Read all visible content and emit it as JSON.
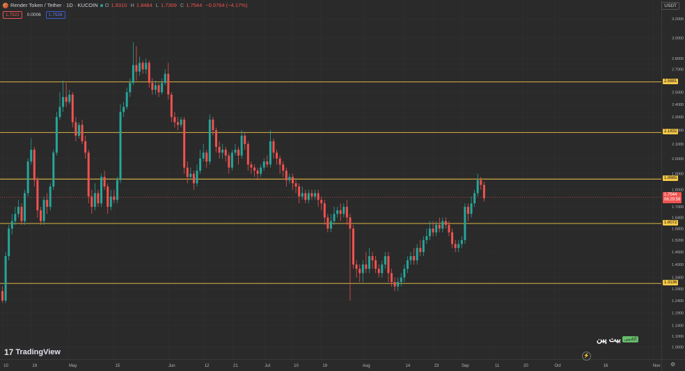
{
  "header": {
    "symbol": "Render Token / Tether · 1D · KUCOIN",
    "o_label": "O",
    "o": "1.8310",
    "h_label": "H",
    "h": "1.8484",
    "l_label": "L",
    "l": "1.7309",
    "c_label": "C",
    "c": "1.7544",
    "change": "−0.0764 (−4.17%)",
    "sell": "1.7522",
    "spread": "0.0006",
    "buy": "1.7528",
    "currency": "USDT"
  },
  "branding": {
    "logo_text": "TradingView",
    "logo_mark": "17",
    "watermark_text": "بیت پین",
    "watermark_badge": "آکادمی",
    "bolt_icon": "⚡"
  },
  "colors": {
    "up": "#26a69a",
    "down": "#ef5350",
    "level": "#f7c948",
    "bg": "#2a2a2a",
    "grid": "#333333"
  },
  "levels": [
    {
      "label": "2.5881",
      "value": 2.5881
    },
    {
      "label": "2.1832",
      "value": 2.1832
    },
    {
      "label": "1.8665",
      "value": 1.8665
    },
    {
      "label": "1.6072",
      "value": 1.6072
    },
    {
      "label": "1.3136",
      "value": 1.3136
    }
  ],
  "last_price": {
    "price": "1.7544",
    "countdown": "06:29:58",
    "value": 1.7544
  },
  "chart_data": {
    "type": "candlestick",
    "scale": "log",
    "ylim": [
      1.03,
      3.3
    ],
    "y_ticks": [
      {
        "label": "3.2000",
        "value": 3.2
      },
      {
        "label": "3.0000",
        "value": 3.0
      },
      {
        "label": "2.8000",
        "value": 2.8
      },
      {
        "label": "2.7000",
        "value": 2.7
      },
      {
        "label": "2.5000",
        "value": 2.5
      },
      {
        "label": "2.4000",
        "value": 2.4
      },
      {
        "label": "2.3000",
        "value": 2.3
      },
      {
        "label": "2.2000",
        "value": 2.2
      },
      {
        "label": "2.1000",
        "value": 2.1
      },
      {
        "label": "2.0000",
        "value": 2.0
      },
      {
        "label": "1.9000",
        "value": 1.9
      },
      {
        "label": "1.8000",
        "value": 1.8
      },
      {
        "label": "1.7000",
        "value": 1.7
      },
      {
        "label": "1.6400",
        "value": 1.64
      },
      {
        "label": "1.5800",
        "value": 1.58
      },
      {
        "label": "1.5200",
        "value": 1.52
      },
      {
        "label": "1.4600",
        "value": 1.46
      },
      {
        "label": "1.4000",
        "value": 1.4
      },
      {
        "label": "1.3400",
        "value": 1.34
      },
      {
        "label": "1.2900",
        "value": 1.29
      },
      {
        "label": "1.2400",
        "value": 1.24
      },
      {
        "label": "1.1900",
        "value": 1.19
      },
      {
        "label": "1.1400",
        "value": 1.14
      },
      {
        "label": "1.1000",
        "value": 1.1
      },
      {
        "label": "1.0600",
        "value": 1.06
      }
    ],
    "x_ticks": [
      {
        "label": "10",
        "day": 0
      },
      {
        "label": "19",
        "day": 9
      },
      {
        "label": "May",
        "day": 21
      },
      {
        "label": "15",
        "day": 35
      },
      {
        "label": "Jun",
        "day": 52
      },
      {
        "label": "12",
        "day": 63
      },
      {
        "label": "21",
        "day": 72
      },
      {
        "label": "Jul",
        "day": 82
      },
      {
        "label": "10",
        "day": 91
      },
      {
        "label": "19",
        "day": 100
      },
      {
        "label": "Aug",
        "day": 113
      },
      {
        "label": "14",
        "day": 126
      },
      {
        "label": "23",
        "day": 135
      },
      {
        "label": "Sep",
        "day": 144
      },
      {
        "label": "11",
        "day": 154
      },
      {
        "label": "20",
        "day": 163
      },
      {
        "label": "Oct",
        "day": 173
      },
      {
        "label": "16",
        "day": 188
      },
      {
        "label": "Nov",
        "day": 204
      }
    ],
    "candles": [
      [
        1.28,
        1.24,
        1.3,
        1.23
      ],
      [
        1.24,
        1.44,
        1.46,
        1.23
      ],
      [
        1.44,
        1.58,
        1.6,
        1.42
      ],
      [
        1.58,
        1.62,
        1.66,
        1.55
      ],
      [
        1.62,
        1.66,
        1.7,
        1.6
      ],
      [
        1.66,
        1.7,
        1.74,
        1.64
      ],
      [
        1.7,
        1.62,
        1.72,
        1.6
      ],
      [
        1.62,
        1.78,
        1.8,
        1.6
      ],
      [
        1.78,
        1.98,
        2.0,
        1.76
      ],
      [
        1.98,
        2.06,
        2.14,
        1.96
      ],
      [
        2.06,
        1.86,
        2.08,
        1.82
      ],
      [
        1.86,
        1.68,
        1.88,
        1.64
      ],
      [
        1.68,
        1.62,
        1.7,
        1.6
      ],
      [
        1.62,
        1.74,
        1.76,
        1.6
      ],
      [
        1.74,
        1.7,
        1.78,
        1.66
      ],
      [
        1.7,
        1.82,
        1.84,
        1.68
      ],
      [
        1.82,
        2.04,
        2.06,
        1.8
      ],
      [
        2.04,
        2.3,
        2.34,
        2.02
      ],
      [
        2.3,
        2.38,
        2.5,
        2.28
      ],
      [
        2.38,
        2.46,
        2.6,
        2.34
      ],
      [
        2.46,
        2.42,
        2.58,
        2.38
      ],
      [
        2.42,
        2.48,
        2.52,
        2.4
      ],
      [
        2.48,
        2.26,
        2.5,
        2.22
      ],
      [
        2.26,
        2.16,
        2.3,
        2.12
      ],
      [
        2.16,
        2.24,
        2.26,
        2.14
      ],
      [
        2.24,
        2.12,
        2.28,
        2.1
      ],
      [
        2.12,
        2.04,
        2.16,
        2.0
      ],
      [
        2.04,
        1.76,
        2.06,
        1.72
      ],
      [
        1.76,
        1.7,
        1.8,
        1.66
      ],
      [
        1.7,
        1.78,
        1.84,
        1.68
      ],
      [
        1.78,
        1.72,
        1.8,
        1.7
      ],
      [
        1.72,
        1.88,
        1.9,
        1.7
      ],
      [
        1.88,
        1.82,
        1.92,
        1.8
      ],
      [
        1.82,
        1.7,
        1.84,
        1.66
      ],
      [
        1.7,
        1.76,
        1.8,
        1.68
      ],
      [
        1.76,
        1.74,
        1.8,
        1.72
      ],
      [
        1.74,
        1.86,
        1.88,
        1.72
      ],
      [
        1.86,
        2.34,
        2.4,
        1.84
      ],
      [
        2.34,
        2.38,
        2.42,
        2.3
      ],
      [
        2.38,
        2.5,
        2.54,
        2.36
      ],
      [
        2.5,
        2.58,
        2.62,
        2.46
      ],
      [
        2.58,
        2.74,
        2.96,
        2.56
      ],
      [
        2.74,
        2.68,
        2.92,
        2.6
      ],
      [
        2.68,
        2.76,
        2.82,
        2.64
      ],
      [
        2.76,
        2.7,
        2.78,
        2.66
      ],
      [
        2.7,
        2.76,
        2.8,
        2.66
      ],
      [
        2.76,
        2.58,
        2.78,
        2.54
      ],
      [
        2.58,
        2.52,
        2.62,
        2.48
      ],
      [
        2.52,
        2.56,
        2.6,
        2.48
      ],
      [
        2.56,
        2.5,
        2.58,
        2.46
      ],
      [
        2.5,
        2.58,
        2.62,
        2.48
      ],
      [
        2.58,
        2.66,
        2.7,
        2.56
      ],
      [
        2.66,
        2.48,
        2.76,
        2.44
      ],
      [
        2.48,
        2.3,
        2.5,
        2.26
      ],
      [
        2.3,
        2.26,
        2.34,
        2.22
      ],
      [
        2.26,
        2.24,
        2.3,
        2.2
      ],
      [
        2.24,
        2.28,
        2.3,
        2.22
      ],
      [
        2.28,
        1.94,
        2.3,
        1.9
      ],
      [
        1.94,
        1.88,
        1.98,
        1.84
      ],
      [
        1.88,
        1.9,
        1.94,
        1.86
      ],
      [
        1.9,
        1.84,
        1.92,
        1.8
      ],
      [
        1.84,
        1.92,
        1.96,
        1.82
      ],
      [
        1.92,
        2.0,
        2.06,
        1.9
      ],
      [
        2.0,
        2.04,
        2.1,
        1.98
      ],
      [
        2.04,
        1.98,
        2.06,
        1.94
      ],
      [
        1.98,
        2.28,
        2.32,
        1.96
      ],
      [
        2.28,
        2.2,
        2.3,
        2.16
      ],
      [
        2.2,
        2.08,
        2.22,
        2.04
      ],
      [
        2.08,
        2.04,
        2.12,
        2.0
      ],
      [
        2.04,
        2.06,
        2.1,
        2.0
      ],
      [
        2.06,
        2.02,
        2.08,
        1.98
      ],
      [
        2.02,
        1.94,
        2.04,
        1.9
      ],
      [
        1.94,
        2.04,
        2.06,
        1.92
      ],
      [
        2.04,
        2.06,
        2.1,
        2.02
      ],
      [
        2.06,
        2.02,
        2.08,
        1.96
      ],
      [
        2.02,
        2.16,
        2.2,
        2.0
      ],
      [
        2.16,
        2.1,
        2.18,
        2.06
      ],
      [
        2.1,
        1.96,
        2.12,
        1.92
      ],
      [
        1.96,
        1.94,
        1.98,
        1.9
      ],
      [
        1.94,
        1.92,
        1.96,
        1.88
      ],
      [
        1.92,
        1.9,
        1.94,
        1.86
      ],
      [
        1.9,
        1.94,
        1.96,
        1.88
      ],
      [
        1.94,
        1.98,
        2.0,
        1.92
      ],
      [
        1.98,
        1.96,
        2.02,
        1.94
      ],
      [
        1.96,
        2.12,
        2.2,
        1.94
      ],
      [
        2.12,
        2.04,
        2.14,
        2.0
      ],
      [
        2.04,
        2.0,
        2.06,
        1.96
      ],
      [
        2.0,
        1.96,
        2.02,
        1.9
      ],
      [
        1.96,
        1.92,
        1.98,
        1.88
      ],
      [
        1.92,
        1.86,
        1.94,
        1.82
      ],
      [
        1.86,
        1.88,
        1.9,
        1.84
      ],
      [
        1.88,
        1.84,
        1.9,
        1.8
      ],
      [
        1.84,
        1.82,
        1.86,
        1.78
      ],
      [
        1.82,
        1.76,
        1.84,
        1.72
      ],
      [
        1.76,
        1.78,
        1.82,
        1.74
      ],
      [
        1.78,
        1.74,
        1.8,
        1.72
      ],
      [
        1.74,
        1.78,
        1.8,
        1.72
      ],
      [
        1.78,
        1.76,
        1.8,
        1.74
      ],
      [
        1.76,
        1.78,
        1.8,
        1.74
      ],
      [
        1.78,
        1.74,
        1.8,
        1.7
      ],
      [
        1.74,
        1.72,
        1.76,
        1.68
      ],
      [
        1.72,
        1.64,
        1.74,
        1.6
      ],
      [
        1.64,
        1.58,
        1.66,
        1.56
      ],
      [
        1.58,
        1.62,
        1.66,
        1.56
      ],
      [
        1.62,
        1.66,
        1.7,
        1.6
      ],
      [
        1.66,
        1.68,
        1.7,
        1.64
      ],
      [
        1.68,
        1.66,
        1.72,
        1.62
      ],
      [
        1.66,
        1.7,
        1.72,
        1.64
      ],
      [
        1.7,
        1.64,
        1.74,
        1.6
      ],
      [
        1.64,
        1.58,
        1.66,
        1.24
      ],
      [
        1.58,
        1.4,
        1.6,
        1.38
      ],
      [
        1.4,
        1.38,
        1.42,
        1.34
      ],
      [
        1.38,
        1.36,
        1.4,
        1.32
      ],
      [
        1.36,
        1.4,
        1.42,
        1.32
      ],
      [
        1.4,
        1.38,
        1.46,
        1.36
      ],
      [
        1.38,
        1.44,
        1.48,
        1.36
      ],
      [
        1.44,
        1.42,
        1.46,
        1.38
      ],
      [
        1.42,
        1.38,
        1.44,
        1.36
      ],
      [
        1.38,
        1.36,
        1.4,
        1.34
      ],
      [
        1.36,
        1.4,
        1.42,
        1.34
      ],
      [
        1.4,
        1.44,
        1.46,
        1.38
      ],
      [
        1.44,
        1.36,
        1.46,
        1.32
      ],
      [
        1.36,
        1.32,
        1.38,
        1.3
      ],
      [
        1.32,
        1.3,
        1.34,
        1.28
      ],
      [
        1.3,
        1.32,
        1.34,
        1.28
      ],
      [
        1.32,
        1.34,
        1.36,
        1.3
      ],
      [
        1.34,
        1.38,
        1.4,
        1.32
      ],
      [
        1.38,
        1.42,
        1.44,
        1.36
      ],
      [
        1.42,
        1.44,
        1.46,
        1.4
      ],
      [
        1.44,
        1.42,
        1.48,
        1.4
      ],
      [
        1.42,
        1.48,
        1.5,
        1.4
      ],
      [
        1.48,
        1.46,
        1.52,
        1.44
      ],
      [
        1.46,
        1.52,
        1.54,
        1.44
      ],
      [
        1.52,
        1.54,
        1.58,
        1.5
      ],
      [
        1.54,
        1.58,
        1.62,
        1.52
      ],
      [
        1.58,
        1.56,
        1.62,
        1.54
      ],
      [
        1.56,
        1.6,
        1.62,
        1.54
      ],
      [
        1.6,
        1.58,
        1.64,
        1.56
      ],
      [
        1.58,
        1.62,
        1.64,
        1.56
      ],
      [
        1.62,
        1.6,
        1.64,
        1.58
      ],
      [
        1.6,
        1.56,
        1.62,
        1.54
      ],
      [
        1.56,
        1.5,
        1.58,
        1.48
      ],
      [
        1.5,
        1.48,
        1.52,
        1.46
      ],
      [
        1.48,
        1.5,
        1.52,
        1.46
      ],
      [
        1.5,
        1.52,
        1.54,
        1.48
      ],
      [
        1.52,
        1.7,
        1.72,
        1.5
      ],
      [
        1.7,
        1.66,
        1.72,
        1.62
      ],
      [
        1.66,
        1.72,
        1.76,
        1.64
      ],
      [
        1.72,
        1.78,
        1.8,
        1.7
      ],
      [
        1.78,
        1.86,
        1.9,
        1.76
      ],
      [
        1.86,
        1.83,
        1.88,
        1.8
      ],
      [
        1.83,
        1.75,
        1.85,
        1.73
      ]
    ]
  }
}
